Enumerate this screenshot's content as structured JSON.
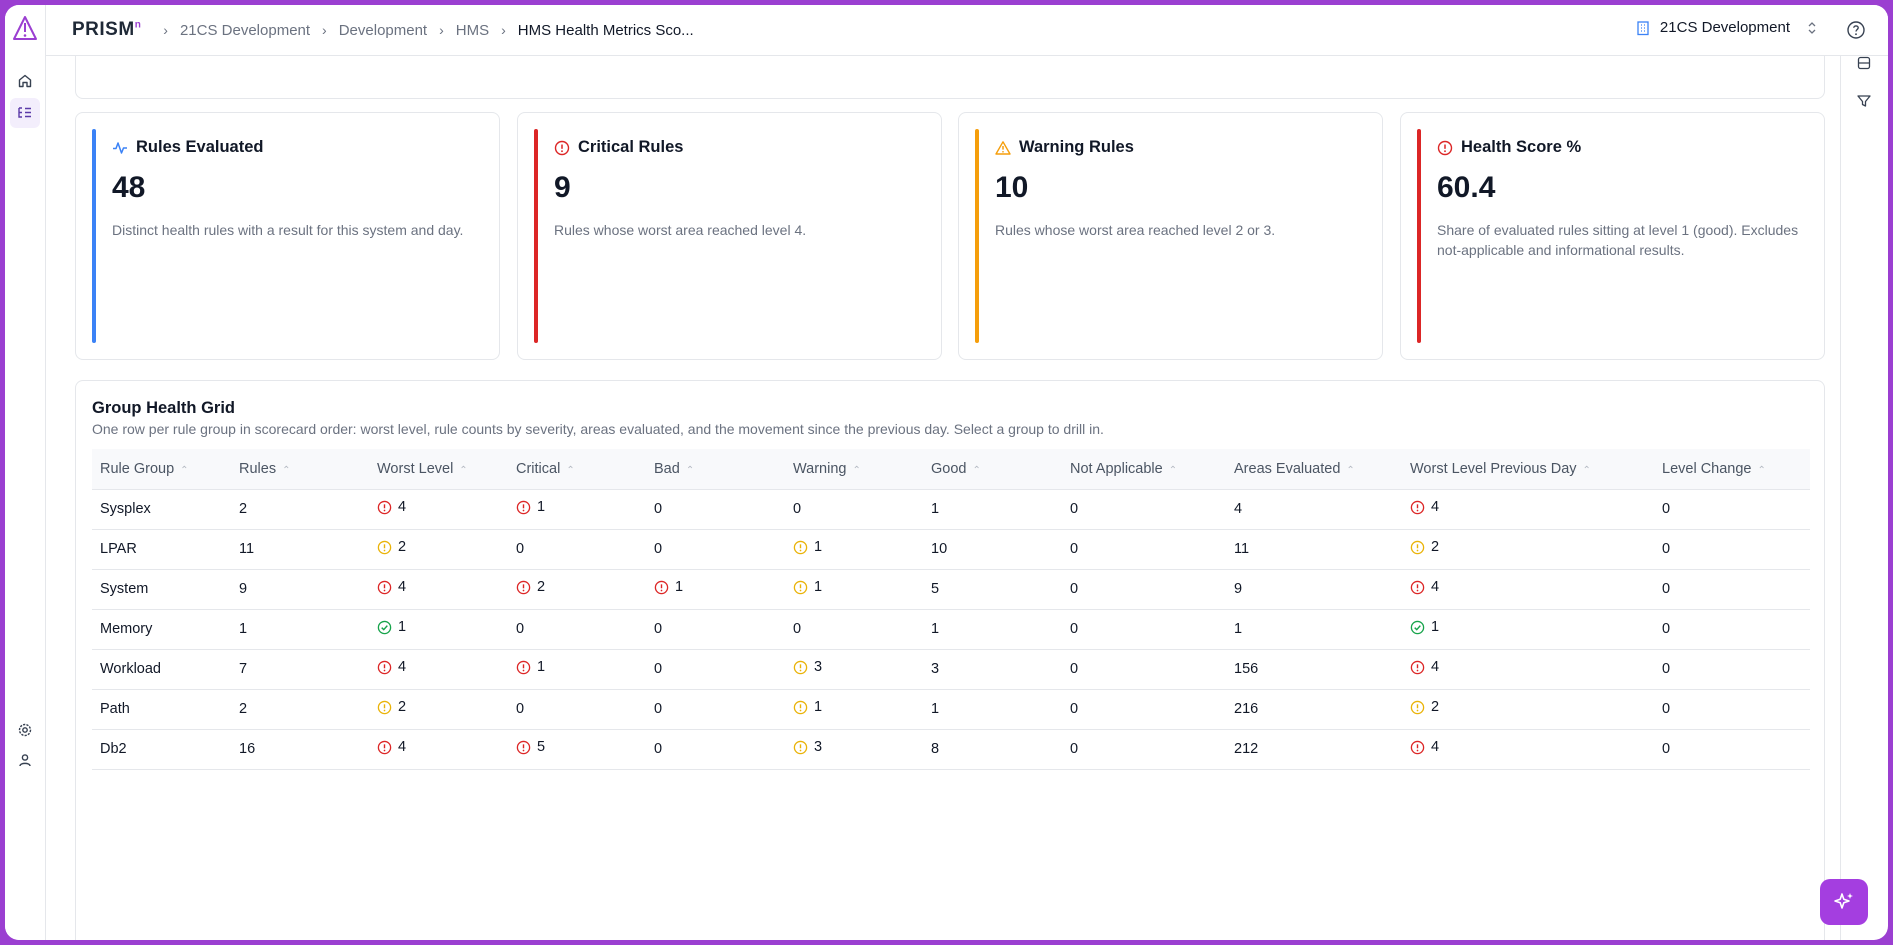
{
  "brand": {
    "name": "PRISM",
    "superscript": "n"
  },
  "breadcrumb": [
    "21CS Development",
    "Development",
    "HMS",
    "HMS Health Metrics Sco..."
  ],
  "tenant": {
    "label": "21CS Development"
  },
  "icons": {
    "rail": [
      "app-logo-icon",
      "home-icon",
      "scorecard-list-icon",
      "settings-icon",
      "user-icon"
    ],
    "right_rail": [
      "database-icon",
      "filter-icon"
    ],
    "fab": "ai-sparkle-icon"
  },
  "colors": {
    "accent": "#9b3fd1",
    "critical": "#dc2626",
    "warning": "#f59e0b",
    "info": "#3b82f6",
    "good": "#16a34a",
    "bad_yellow": "#eab308"
  },
  "kpis": [
    {
      "title": "Rules Evaluated",
      "value": "48",
      "desc": "Distinct health rules with a result for this system and day.",
      "icon": "activity-icon",
      "color": "#3b82f6"
    },
    {
      "title": "Critical Rules",
      "value": "9",
      "desc": "Rules whose worst area reached level 4.",
      "icon": "alert-circle-icon",
      "color": "#dc2626"
    },
    {
      "title": "Warning Rules",
      "value": "10",
      "desc": "Rules whose worst area reached level 2 or 3.",
      "icon": "alert-triangle-icon",
      "color": "#f59e0b"
    },
    {
      "title": "Health Score %",
      "value": "60.4",
      "desc": "Share of evaluated rules sitting at level 1 (good). Excludes not-applicable and informational results.",
      "icon": "alert-circle-icon",
      "color": "#dc2626"
    }
  ],
  "grid": {
    "title": "Group Health Grid",
    "subtitle": "One row per rule group in scorecard order: worst level, rule counts by severity, areas evaluated, and the movement since the previous day. Select a group to drill in.",
    "columns": [
      "Rule Group",
      "Rules",
      "Worst Level",
      "Critical",
      "Bad",
      "Warning",
      "Good",
      "Not Applicable",
      "Areas Evaluated",
      "Worst Level Previous Day",
      "Level Change"
    ],
    "rows": [
      {
        "group": "Sysplex",
        "rules": "2",
        "worst": "4",
        "critical": "1",
        "bad": "0",
        "warning": "0",
        "good": "1",
        "na": "0",
        "areas": "4",
        "prev": "4",
        "change": "0"
      },
      {
        "group": "LPAR",
        "rules": "11",
        "worst": "2",
        "critical": "0",
        "bad": "0",
        "warning": "1",
        "good": "10",
        "na": "0",
        "areas": "11",
        "prev": "2",
        "change": "0"
      },
      {
        "group": "System",
        "rules": "9",
        "worst": "4",
        "critical": "2",
        "bad": "1",
        "warning": "1",
        "good": "5",
        "na": "0",
        "areas": "9",
        "prev": "4",
        "change": "0"
      },
      {
        "group": "Memory",
        "rules": "1",
        "worst": "1",
        "critical": "0",
        "bad": "0",
        "warning": "0",
        "good": "1",
        "na": "0",
        "areas": "1",
        "prev": "1",
        "change": "0"
      },
      {
        "group": "Workload",
        "rules": "7",
        "worst": "4",
        "critical": "1",
        "bad": "0",
        "warning": "3",
        "good": "3",
        "na": "0",
        "areas": "156",
        "prev": "4",
        "change": "0"
      },
      {
        "group": "Path",
        "rules": "2",
        "worst": "2",
        "critical": "0",
        "bad": "0",
        "warning": "1",
        "good": "1",
        "na": "0",
        "areas": "216",
        "prev": "2",
        "change": "0"
      },
      {
        "group": "Db2",
        "rules": "16",
        "worst": "4",
        "critical": "5",
        "bad": "0",
        "warning": "3",
        "good": "8",
        "na": "0",
        "areas": "212",
        "prev": "4",
        "change": "0"
      }
    ]
  }
}
